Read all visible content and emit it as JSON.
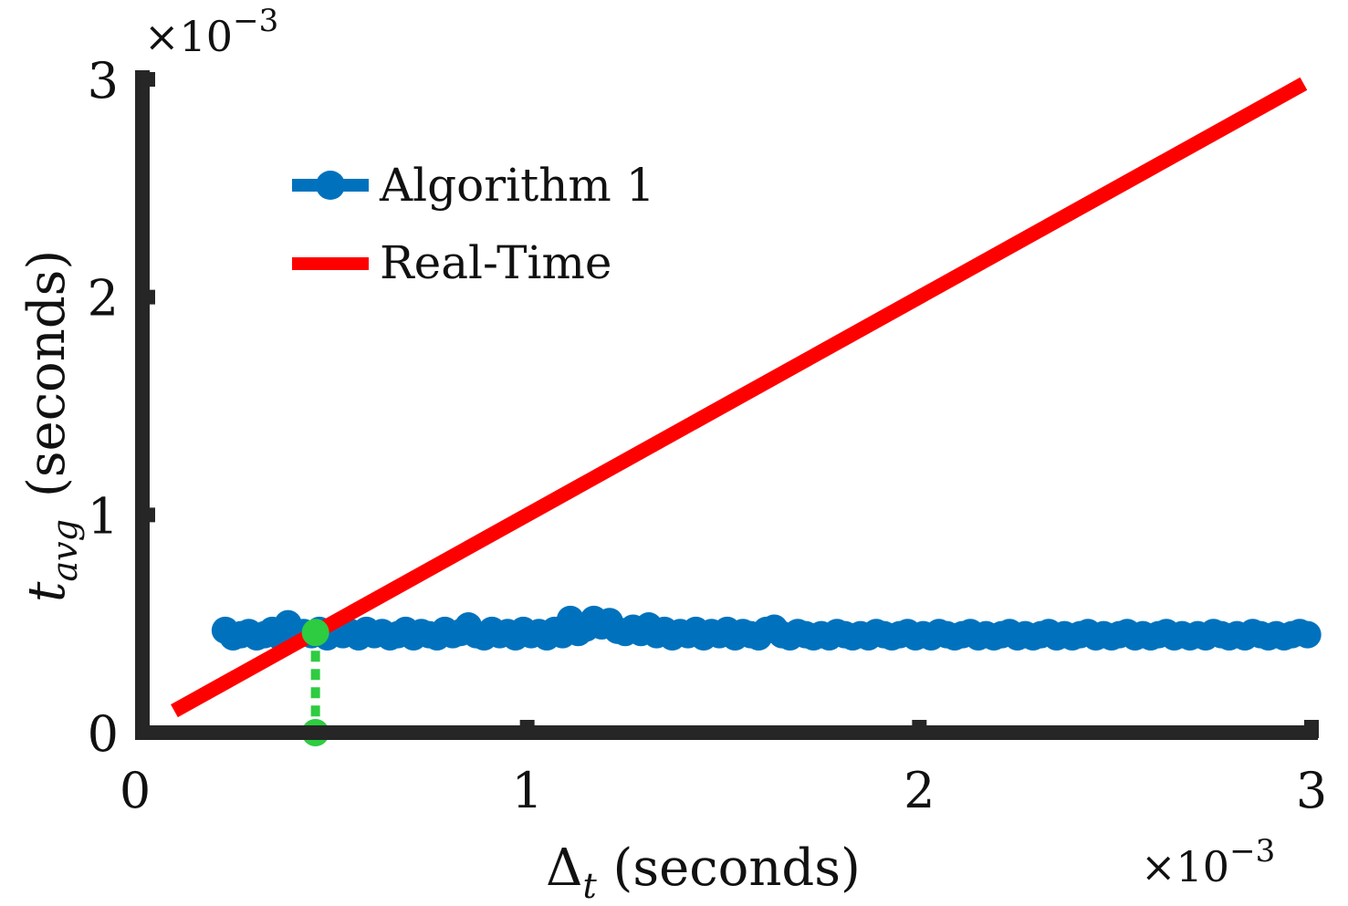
{
  "chart_data": {
    "type": "line",
    "xlabel_main": "Δ",
    "xlabel_sub": "t",
    "xlabel_rest": " (seconds)",
    "ylabel_main": "t",
    "ylabel_sub": "avg",
    "ylabel_rest": "(seconds)",
    "x_exponent_base": "×10",
    "x_exponent_power": "−3",
    "y_exponent_base": "×10",
    "y_exponent_power": "−3",
    "xlim": [
      0,
      3
    ],
    "ylim": [
      0,
      3
    ],
    "scale_note": "both axes ×10^-3",
    "x_ticks": [
      "0",
      "1",
      "2",
      "3"
    ],
    "y_ticks": [
      "0",
      "1",
      "2",
      "3"
    ],
    "grid": false,
    "legend_position": "upper-left",
    "series": [
      {
        "name": "Algorithm 1",
        "color": "#0072BD",
        "marker": "circle",
        "x": [
          0.23,
          0.25,
          0.27,
          0.29,
          0.31,
          0.33,
          0.35,
          0.37,
          0.39,
          0.41,
          0.43,
          0.45,
          0.47,
          0.49,
          0.51,
          0.53,
          0.55,
          0.57,
          0.59,
          0.61,
          0.63,
          0.65,
          0.67,
          0.69,
          0.71,
          0.73,
          0.75,
          0.77,
          0.79,
          0.81,
          0.83,
          0.85,
          0.87,
          0.89,
          0.91,
          0.93,
          0.95,
          0.97,
          0.99,
          1.01,
          1.03,
          1.05,
          1.07,
          1.09,
          1.11,
          1.13,
          1.15,
          1.17,
          1.19,
          1.21,
          1.23,
          1.25,
          1.27,
          1.29,
          1.31,
          1.33,
          1.35,
          1.37,
          1.39,
          1.41,
          1.43,
          1.45,
          1.47,
          1.49,
          1.51,
          1.53,
          1.55,
          1.57,
          1.59,
          1.61,
          1.63,
          1.65,
          1.67,
          1.69,
          1.71,
          1.73,
          1.75,
          1.77,
          1.79,
          1.81,
          1.83,
          1.85,
          1.87,
          1.89,
          1.91,
          1.93,
          1.95,
          1.97,
          1.99,
          2.01,
          2.03,
          2.05,
          2.07,
          2.09,
          2.11,
          2.13,
          2.15,
          2.17,
          2.19,
          2.21,
          2.23,
          2.25,
          2.27,
          2.29,
          2.31,
          2.33,
          2.35,
          2.37,
          2.39,
          2.41,
          2.43,
          2.45,
          2.47,
          2.49,
          2.51,
          2.53,
          2.55,
          2.57,
          2.59,
          2.61,
          2.63,
          2.65,
          2.67,
          2.69,
          2.71,
          2.73,
          2.75,
          2.77,
          2.79,
          2.81,
          2.83,
          2.85,
          2.87,
          2.89,
          2.91,
          2.93,
          2.95,
          2.97,
          2.99
        ],
        "y": [
          0.47,
          0.44,
          0.45,
          0.46,
          0.44,
          0.45,
          0.47,
          0.44,
          0.5,
          0.45,
          0.46,
          0.45,
          0.47,
          0.44,
          0.46,
          0.45,
          0.46,
          0.44,
          0.47,
          0.45,
          0.46,
          0.44,
          0.45,
          0.47,
          0.44,
          0.46,
          0.45,
          0.44,
          0.47,
          0.45,
          0.46,
          0.49,
          0.45,
          0.44,
          0.47,
          0.45,
          0.46,
          0.44,
          0.47,
          0.45,
          0.46,
          0.44,
          0.47,
          0.45,
          0.52,
          0.46,
          0.48,
          0.52,
          0.49,
          0.51,
          0.47,
          0.46,
          0.48,
          0.46,
          0.49,
          0.45,
          0.47,
          0.44,
          0.46,
          0.45,
          0.47,
          0.44,
          0.46,
          0.45,
          0.47,
          0.44,
          0.46,
          0.45,
          0.44,
          0.47,
          0.48,
          0.45,
          0.44,
          0.46,
          0.45,
          0.44,
          0.45,
          0.44,
          0.46,
          0.45,
          0.44,
          0.45,
          0.44,
          0.46,
          0.45,
          0.44,
          0.45,
          0.46,
          0.44,
          0.45,
          0.44,
          0.46,
          0.45,
          0.44,
          0.45,
          0.46,
          0.44,
          0.45,
          0.44,
          0.45,
          0.46,
          0.44,
          0.45,
          0.44,
          0.45,
          0.46,
          0.44,
          0.45,
          0.44,
          0.45,
          0.46,
          0.44,
          0.45,
          0.44,
          0.45,
          0.46,
          0.44,
          0.45,
          0.44,
          0.45,
          0.46,
          0.44,
          0.45,
          0.44,
          0.45,
          0.44,
          0.46,
          0.45,
          0.44,
          0.45,
          0.44,
          0.46,
          0.45,
          0.44,
          0.45,
          0.44,
          0.45,
          0.46,
          0.45
        ]
      },
      {
        "name": "Real-Time",
        "color": "#FF0000",
        "marker": "none",
        "x": [
          0.1,
          2.98
        ],
        "y": [
          0.1,
          2.98
        ]
      }
    ],
    "annotations": [
      {
        "type": "intersection-drop",
        "color": "#2ECC40",
        "x": 0.46,
        "y_top": 0.46,
        "y_bottom": 0
      }
    ]
  }
}
